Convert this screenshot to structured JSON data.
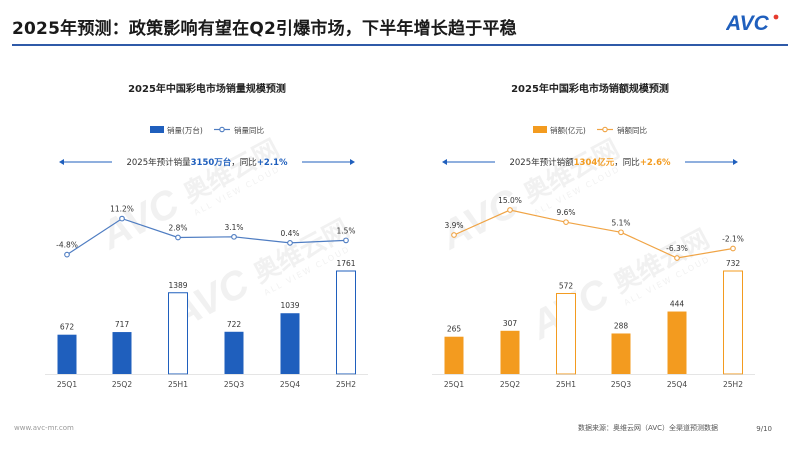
{
  "page": {
    "title": "2025年预测：政策影响有望在Q2引爆市场，下半年增长趋于平稳",
    "logo_text": "AVC",
    "watermark_cn": "奥维云网",
    "watermark_en": "ALL VIEW CLOUD",
    "watermark_brand": "AVC",
    "footer_url": "www.avc-mr.com",
    "footer_source": "数据来源：奥维云网（AVC）全渠道预测数据",
    "footer_page": "9/10"
  },
  "colors": {
    "title_rule": "#2f5aa8",
    "blue_bar": "#1f5fbd",
    "blue_line": "#4f7dc2",
    "orange_bar": "#f39b1f",
    "orange_line": "#f0a445",
    "brand_blue": "#1f5fbd",
    "brand_orange": "#f39b1f",
    "brand_red": "#e63b2e"
  },
  "chart_data": [
    {
      "type": "bar+line",
      "title": "2025年中国彩电市场销量规模预测",
      "legend": {
        "bar": "销量(万台)",
        "line": "销量同比"
      },
      "annotation": {
        "prefix": "2025年预计销量",
        "value": "3150万台",
        "mid": "，同比",
        "change": "+2.1%"
      },
      "categories": [
        "25Q1",
        "25Q2",
        "25H1",
        "25Q3",
        "25Q4",
        "25H2"
      ],
      "values": [
        672,
        717,
        1389,
        722,
        1039,
        1761
      ],
      "value_labels": [
        "672",
        "717",
        "1389",
        "722",
        "1039",
        "1761"
      ],
      "bar_style": [
        "filled",
        "filled",
        "outline",
        "filled",
        "filled",
        "outline"
      ],
      "yoy": [
        -4.8,
        11.2,
        2.8,
        3.1,
        0.4,
        1.5
      ],
      "yoy_labels": [
        "-4.8%",
        "11.2%",
        "2.8%",
        "3.1%",
        "0.4%",
        "1.5%"
      ],
      "bar_max": 1761,
      "line_range": [
        -6.3,
        15.0
      ]
    },
    {
      "type": "bar+line",
      "title": "2025年中国彩电市场销额规模预测",
      "legend": {
        "bar": "销额(亿元)",
        "line": "销额同比"
      },
      "annotation": {
        "prefix": "2025年预计销额",
        "value": "1304亿元",
        "mid": "，同比",
        "change": "+2.6%"
      },
      "categories": [
        "25Q1",
        "25Q2",
        "25H1",
        "25Q3",
        "25Q4",
        "25H2"
      ],
      "values": [
        265,
        307,
        572,
        288,
        444,
        732
      ],
      "value_labels": [
        "265",
        "307",
        "572",
        "288",
        "444",
        "732"
      ],
      "bar_style": [
        "filled",
        "filled",
        "outline",
        "filled",
        "filled",
        "outline"
      ],
      "yoy": [
        3.9,
        15.0,
        9.6,
        5.1,
        -6.3,
        -2.1
      ],
      "yoy_labels": [
        "3.9%",
        "15.0%",
        "9.6%",
        "5.1%",
        "-6.3%",
        "-2.1%"
      ],
      "bar_max": 732,
      "line_range": [
        -6.3,
        15.0
      ]
    }
  ]
}
